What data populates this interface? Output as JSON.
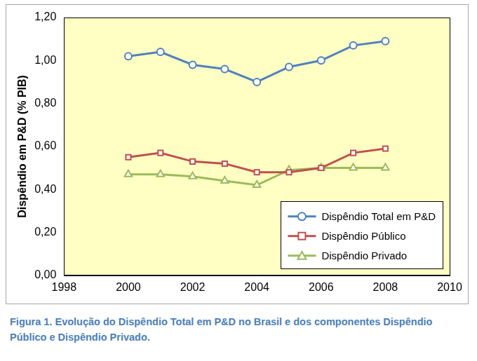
{
  "chart_data": {
    "type": "line",
    "title": "Figura 1. Evolução do Dispêndio Total em P&D no Brasil e dos componentes Dispêndio Público e Dispêndio Privado.",
    "y_label": "Dispêndio em P&D (% PIB)",
    "x": [
      2000,
      2001,
      2002,
      2003,
      2004,
      2005,
      2006,
      2007,
      2008
    ],
    "series": [
      {
        "name": "Dispêndio Total em P&D",
        "color": "#4f81bd",
        "marker": "circle",
        "values": [
          1.02,
          1.04,
          0.98,
          0.96,
          0.9,
          0.97,
          1.0,
          1.07,
          1.09
        ]
      },
      {
        "name": "Dispêndio Público",
        "color": "#c0504d",
        "marker": "square",
        "values": [
          0.55,
          0.57,
          0.53,
          0.52,
          0.48,
          0.48,
          0.5,
          0.57,
          0.59
        ]
      },
      {
        "name": "Dispêndio Privado",
        "color": "#9bbb59",
        "marker": "triangle",
        "values": [
          0.47,
          0.47,
          0.46,
          0.44,
          0.42,
          0.49,
          0.5,
          0.5,
          0.5
        ]
      }
    ],
    "xlim": [
      1998,
      2010
    ],
    "xticks": [
      1998,
      2000,
      2002,
      2004,
      2006,
      2008,
      2010
    ],
    "ylim": [
      0,
      1.2
    ],
    "yticks": [
      {
        "value": 0,
        "label": "0,00"
      },
      {
        "value": 0.2,
        "label": "0,20"
      },
      {
        "value": 0.4,
        "label": "0,40"
      },
      {
        "value": 0.6,
        "label": "0,60"
      },
      {
        "value": 0.8,
        "label": "0,80"
      },
      {
        "value": 1.0,
        "label": "1,00"
      },
      {
        "value": 1.2,
        "label": "1,20"
      }
    ],
    "grid": false,
    "legend": "bottom right"
  }
}
